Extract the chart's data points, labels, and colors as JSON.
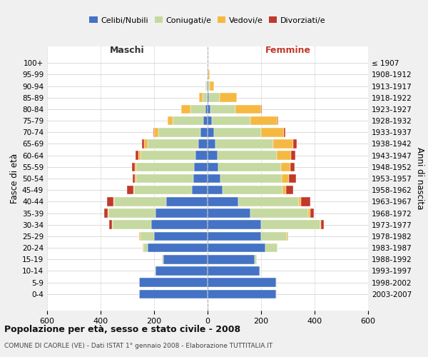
{
  "age_groups": [
    "0-4",
    "5-9",
    "10-14",
    "15-19",
    "20-24",
    "25-29",
    "30-34",
    "35-39",
    "40-44",
    "45-49",
    "50-54",
    "55-59",
    "60-64",
    "65-69",
    "70-74",
    "75-79",
    "80-84",
    "85-89",
    "90-94",
    "95-99",
    "100+"
  ],
  "birth_years": [
    "2003-2007",
    "1998-2002",
    "1993-1997",
    "1988-1992",
    "1983-1987",
    "1978-1982",
    "1973-1977",
    "1968-1972",
    "1963-1967",
    "1958-1962",
    "1953-1957",
    "1948-1952",
    "1943-1947",
    "1938-1942",
    "1933-1937",
    "1928-1932",
    "1923-1927",
    "1918-1922",
    "1913-1917",
    "1908-1912",
    "≤ 1907"
  ],
  "colors": {
    "celibi": "#4472C4",
    "coniugati": "#c5d9a0",
    "vedovi": "#f5b942",
    "divorziati": "#c0392b",
    "background": "#f0f0f0",
    "plot_bg": "#ffffff",
    "grid": "#cccccc"
  },
  "maschi": {
    "celibi": [
      255,
      255,
      195,
      165,
      225,
      200,
      210,
      195,
      155,
      60,
      53,
      52,
      45,
      35,
      28,
      15,
      8,
      3,
      2,
      1,
      1
    ],
    "coniugati": [
      2,
      2,
      2,
      5,
      15,
      50,
      145,
      175,
      195,
      215,
      215,
      215,
      205,
      190,
      155,
      115,
      55,
      15,
      3,
      1,
      0
    ],
    "vedovi": [
      0,
      0,
      0,
      0,
      2,
      5,
      3,
      3,
      2,
      2,
      3,
      5,
      8,
      12,
      18,
      20,
      35,
      15,
      3,
      1,
      0
    ],
    "divorziati": [
      0,
      0,
      0,
      0,
      2,
      2,
      10,
      15,
      25,
      25,
      8,
      10,
      12,
      8,
      2,
      0,
      0,
      0,
      0,
      0,
      0
    ]
  },
  "femmine": {
    "celibi": [
      255,
      255,
      195,
      175,
      215,
      200,
      200,
      160,
      115,
      55,
      48,
      40,
      38,
      30,
      25,
      15,
      10,
      5,
      2,
      1,
      1
    ],
    "coniugati": [
      3,
      3,
      3,
      10,
      45,
      95,
      220,
      215,
      225,
      225,
      230,
      235,
      220,
      215,
      175,
      145,
      95,
      40,
      5,
      2,
      0
    ],
    "vedovi": [
      0,
      0,
      0,
      0,
      2,
      5,
      5,
      8,
      10,
      12,
      25,
      35,
      55,
      75,
      85,
      100,
      95,
      65,
      18,
      5,
      2
    ],
    "divorziati": [
      0,
      0,
      0,
      0,
      0,
      2,
      10,
      15,
      35,
      28,
      28,
      15,
      15,
      12,
      5,
      5,
      2,
      0,
      0,
      0,
      0
    ]
  },
  "title": "Popolazione per età, sesso e stato civile - 2008",
  "subtitle": "COMUNE DI CAORLE (VE) - Dati ISTAT 1° gennaio 2008 - Elaborazione TUTTITALIA.IT",
  "maschi_label": "Maschi",
  "femmine_label": "Femmine",
  "fasce_label": "Fasce di età",
  "anni_label": "Anni di nascita",
  "legend_labels": [
    "Celibi/Nubili",
    "Coniugati/e",
    "Vedovi/e",
    "Divorziati/e"
  ],
  "xlim": 600,
  "figsize": [
    6.0,
    5.0
  ],
  "dpi": 100
}
